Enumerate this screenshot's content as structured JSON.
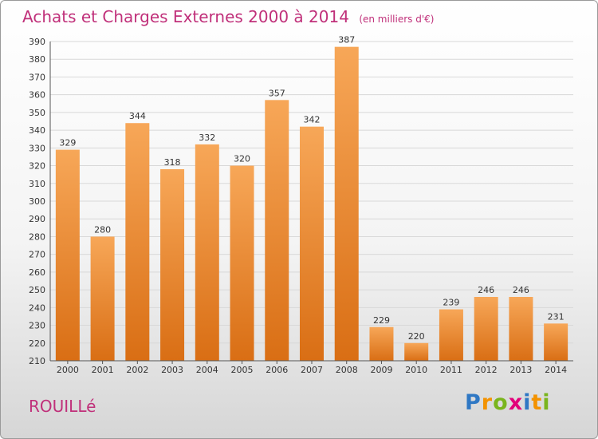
{
  "chart_data": {
    "type": "bar",
    "title": "Achats et Charges Externes 2000 à 2014",
    "subtitle": "(en milliers d'€)",
    "categories": [
      "2000",
      "2001",
      "2002",
      "2003",
      "2004",
      "2005",
      "2006",
      "2007",
      "2008",
      "2009",
      "2010",
      "2011",
      "2012",
      "2013",
      "2014"
    ],
    "values": [
      329,
      280,
      344,
      318,
      332,
      320,
      357,
      342,
      387,
      229,
      220,
      239,
      246,
      246,
      231
    ],
    "ylim": [
      210,
      390
    ],
    "ytick_step": 10,
    "grid": true,
    "bar_color": "#f0913a"
  },
  "place_name": "ROUILLé",
  "logo": {
    "letters": [
      "P",
      "r",
      "o",
      "x",
      "i",
      "t",
      "i"
    ],
    "colors": [
      "#2f78c4",
      "#f39200",
      "#7ab51d",
      "#e2007a",
      "#2f78c4",
      "#f39200",
      "#7ab51d"
    ]
  }
}
